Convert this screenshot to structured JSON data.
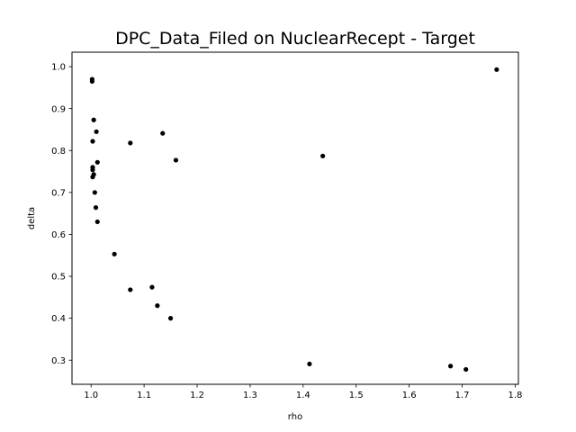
{
  "chart_data": {
    "type": "scatter",
    "title": "DPC_Data_Filed on NuclearRecept - Target",
    "xlabel": "rho",
    "ylabel": "delta",
    "xlim": [
      0.964,
      1.806
    ],
    "ylim": [
      0.2425,
      1.0345
    ],
    "xticks": [
      1.0,
      1.1,
      1.2,
      1.3,
      1.4,
      1.5,
      1.6,
      1.7,
      1.8
    ],
    "xtick_labels": [
      "1.0",
      "1.1",
      "1.2",
      "1.3",
      "1.4",
      "1.5",
      "1.6",
      "1.7",
      "1.8"
    ],
    "yticks": [
      0.3,
      0.4,
      0.5,
      0.6,
      0.7,
      0.8,
      0.9,
      1.0
    ],
    "ytick_labels": [
      "0.3",
      "0.4",
      "0.5",
      "0.6",
      "0.7",
      "0.8",
      "0.9",
      "1.0"
    ],
    "grid": false,
    "marker_color": "#000000",
    "points": [
      {
        "x": 1.002,
        "y": 0.97
      },
      {
        "x": 1.002,
        "y": 0.965
      },
      {
        "x": 1.005,
        "y": 0.873
      },
      {
        "x": 1.01,
        "y": 0.845
      },
      {
        "x": 1.003,
        "y": 0.822
      },
      {
        "x": 1.012,
        "y": 0.772
      },
      {
        "x": 1.003,
        "y": 0.76
      },
      {
        "x": 1.003,
        "y": 0.754
      },
      {
        "x": 1.005,
        "y": 0.743
      },
      {
        "x": 1.003,
        "y": 0.737
      },
      {
        "x": 1.007,
        "y": 0.7
      },
      {
        "x": 1.009,
        "y": 0.664
      },
      {
        "x": 1.012,
        "y": 0.63
      },
      {
        "x": 1.044,
        "y": 0.553
      },
      {
        "x": 1.074,
        "y": 0.818
      },
      {
        "x": 1.074,
        "y": 0.468
      },
      {
        "x": 1.135,
        "y": 0.841
      },
      {
        "x": 1.115,
        "y": 0.474
      },
      {
        "x": 1.125,
        "y": 0.43
      },
      {
        "x": 1.16,
        "y": 0.777
      },
      {
        "x": 1.15,
        "y": 0.4
      },
      {
        "x": 1.437,
        "y": 0.787
      },
      {
        "x": 1.412,
        "y": 0.291
      },
      {
        "x": 1.678,
        "y": 0.286
      },
      {
        "x": 1.707,
        "y": 0.278
      },
      {
        "x": 1.765,
        "y": 0.993
      }
    ]
  }
}
